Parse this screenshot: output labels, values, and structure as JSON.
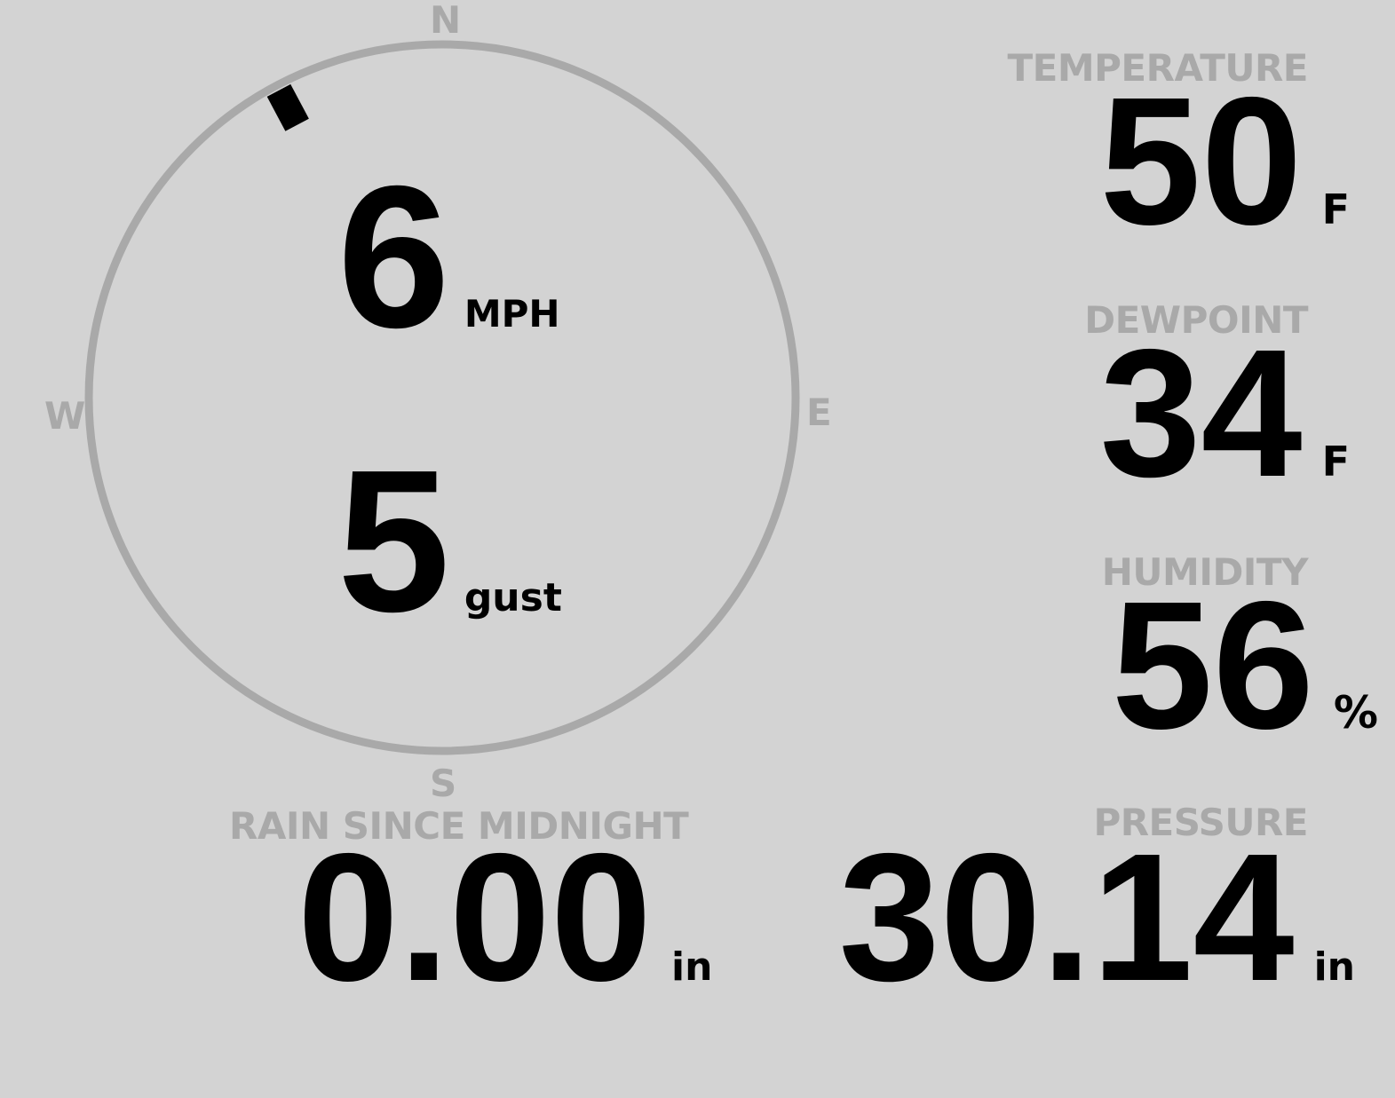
{
  "compass": {
    "north": "N",
    "south": "S",
    "east": "E",
    "west": "W",
    "wind_direction_deg": 332,
    "ring_color": "#a9a9a9",
    "marker_color": "#000000"
  },
  "wind": {
    "speed": "6",
    "speed_unit": "MPH",
    "gust": "5",
    "gust_unit": "gust"
  },
  "temperature": {
    "label": "TEMPERATURE",
    "value": "50",
    "unit": "F"
  },
  "dewpoint": {
    "label": "DEWPOINT",
    "value": "34",
    "unit": "F"
  },
  "humidity": {
    "label": "HUMIDITY",
    "value": "56",
    "unit": "%"
  },
  "rain": {
    "label": "RAIN SINCE MIDNIGHT",
    "value": "0.00",
    "unit": "in"
  },
  "pressure": {
    "label": "PRESSURE",
    "value": "30.14",
    "unit": "in"
  },
  "colors": {
    "background": "#d3d3d3",
    "label": "#a9a9a9",
    "value": "#000000"
  }
}
